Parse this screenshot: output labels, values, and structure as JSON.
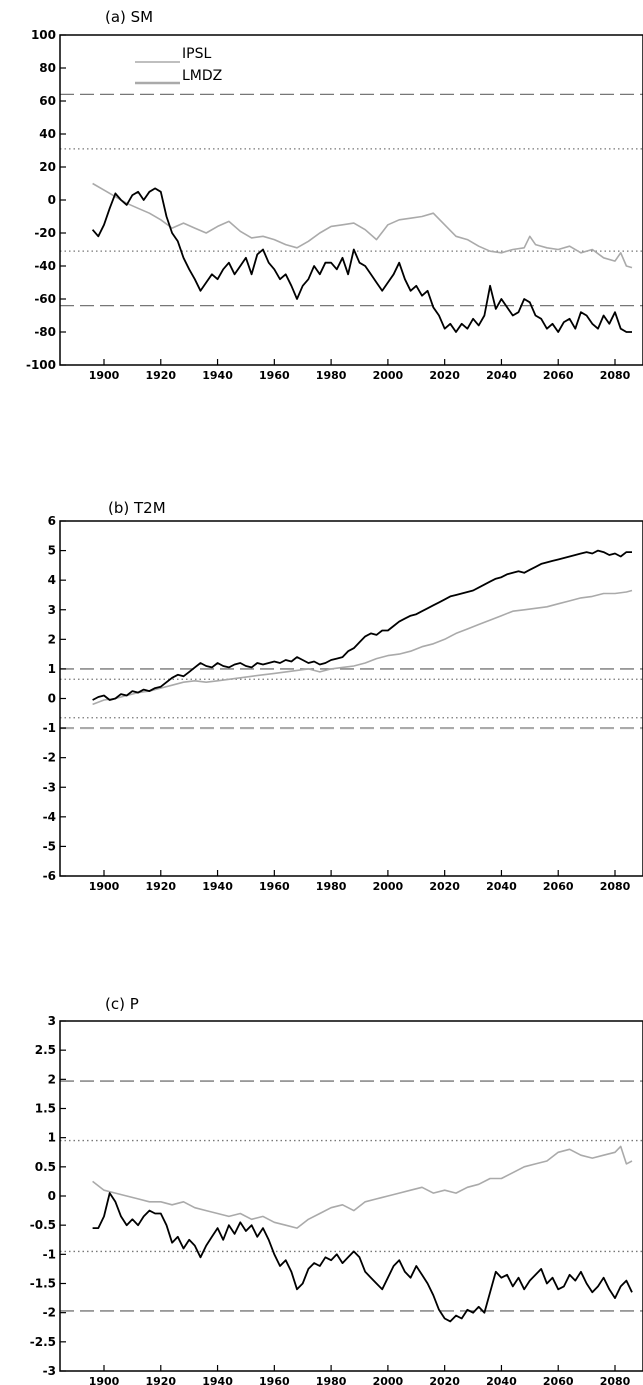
{
  "chart_data": [
    {
      "type": "line",
      "title": "(a)  SM",
      "xlim": [
        1890,
        2090
      ],
      "ylim": [
        -100,
        100
      ],
      "xticks": [
        "1900",
        "1920",
        "1940",
        "1960",
        "1980",
        "2000",
        "2020",
        "2040",
        "2060",
        "2080"
      ],
      "yticks": [
        "100",
        "80",
        "60",
        "40",
        "20",
        "0",
        "-20",
        "-40",
        "-60",
        "-80",
        "-100"
      ],
      "reference_lines": [
        {
          "y": 64,
          "style": "dashed",
          "color": "#777777"
        },
        {
          "y": 31,
          "style": "dotted",
          "color": "#777777"
        },
        {
          "y": -31,
          "style": "dotted",
          "color": "#777777"
        },
        {
          "y": -64,
          "style": "dashed",
          "color": "#777777"
        }
      ],
      "legend": {
        "position": "top-left",
        "entries": [
          "IPSL",
          "LMDZ"
        ]
      },
      "series": [
        {
          "name": "IPSL",
          "color": "#aaaaaa",
          "x": [
            1896,
            1900,
            1904,
            1908,
            1912,
            1916,
            1920,
            1924,
            1928,
            1932,
            1936,
            1940,
            1944,
            1948,
            1952,
            1956,
            1960,
            1964,
            1968,
            1972,
            1976,
            1980,
            1984,
            1988,
            1992,
            1996,
            2000,
            2004,
            2008,
            2012,
            2016,
            2020,
            2024,
            2028,
            2032,
            2036,
            2040,
            2044,
            2048,
            2050,
            2052,
            2056,
            2060,
            2064,
            2068,
            2072,
            2076,
            2080,
            2082,
            2084,
            2086
          ],
          "y": [
            10,
            6,
            2,
            -2,
            -5,
            -8,
            -12,
            -17,
            -14,
            -17,
            -20,
            -16,
            -13,
            -19,
            -23,
            -22,
            -24,
            -27,
            -29,
            -25,
            -20,
            -16,
            -15,
            -14,
            -18,
            -24,
            -15,
            -12,
            -11,
            -10,
            -8,
            -15,
            -22,
            -24,
            -28,
            -31,
            -32,
            -30,
            -29,
            -22,
            -27,
            -29,
            -30,
            -28,
            -32,
            -30,
            -35,
            -37,
            -32,
            -40,
            -41
          ]
        },
        {
          "name": "LMDZ",
          "color": "#000000",
          "x": [
            1896,
            1898,
            1900,
            1902,
            1904,
            1906,
            1908,
            1910,
            1912,
            1914,
            1916,
            1918,
            1920,
            1922,
            1924,
            1926,
            1928,
            1930,
            1932,
            1934,
            1936,
            1938,
            1940,
            1942,
            1944,
            1946,
            1948,
            1950,
            1952,
            1954,
            1956,
            1958,
            1960,
            1962,
            1964,
            1966,
            1968,
            1970,
            1972,
            1974,
            1976,
            1978,
            1980,
            1982,
            1984,
            1986,
            1988,
            1990,
            1992,
            1994,
            1996,
            1998,
            2000,
            2002,
            2004,
            2006,
            2008,
            2010,
            2012,
            2014,
            2016,
            2018,
            2020,
            2022,
            2024,
            2026,
            2028,
            2030,
            2032,
            2034,
            2036,
            2038,
            2040,
            2042,
            2044,
            2046,
            2048,
            2050,
            2052,
            2054,
            2056,
            2058,
            2060,
            2062,
            2064,
            2066,
            2068,
            2070,
            2072,
            2074,
            2076,
            2078,
            2080,
            2082,
            2084,
            2086
          ],
          "y": [
            -18,
            -22,
            -15,
            -5,
            4,
            0,
            -3,
            3,
            5,
            0,
            5,
            7,
            5,
            -10,
            -20,
            -25,
            -35,
            -42,
            -48,
            -55,
            -50,
            -45,
            -48,
            -42,
            -38,
            -45,
            -40,
            -35,
            -45,
            -33,
            -30,
            -38,
            -42,
            -48,
            -45,
            -52,
            -60,
            -52,
            -48,
            -40,
            -45,
            -38,
            -38,
            -42,
            -35,
            -45,
            -30,
            -38,
            -40,
            -45,
            -50,
            -55,
            -50,
            -45,
            -38,
            -48,
            -55,
            -52,
            -58,
            -55,
            -65,
            -70,
            -78,
            -75,
            -80,
            -75,
            -78,
            -72,
            -76,
            -70,
            -52,
            -66,
            -60,
            -65,
            -70,
            -68,
            -60,
            -62,
            -70,
            -72,
            -78,
            -75,
            -80,
            -74,
            -72,
            -78,
            -68,
            -70,
            -75,
            -78,
            -70,
            -75,
            -68,
            -78,
            -80,
            -80
          ]
        }
      ]
    },
    {
      "type": "line",
      "title": "(b)  T2M",
      "xlim": [
        1890,
        2090
      ],
      "ylim": [
        -6,
        6
      ],
      "xticks": [
        "1900",
        "1920",
        "1940",
        "1960",
        "1980",
        "2000",
        "2020",
        "2040",
        "2060",
        "2080"
      ],
      "yticks": [
        "6",
        "5",
        "4",
        "3",
        "2",
        "1",
        "0",
        "-1",
        "-2",
        "-3",
        "-4",
        "-5",
        "-6"
      ],
      "reference_lines": [
        {
          "y": 1.0,
          "style": "dashed",
          "color": "#777777"
        },
        {
          "y": 0.65,
          "style": "dotted",
          "color": "#777777"
        },
        {
          "y": -0.65,
          "style": "dotted",
          "color": "#777777"
        },
        {
          "y": -1.0,
          "style": "dashed",
          "color": "#aaaaaa"
        }
      ],
      "series": [
        {
          "name": "IPSL",
          "color": "#aaaaaa",
          "x": [
            1896,
            1900,
            1904,
            1908,
            1912,
            1916,
            1920,
            1924,
            1928,
            1932,
            1936,
            1940,
            1944,
            1948,
            1952,
            1956,
            1960,
            1964,
            1968,
            1972,
            1976,
            1980,
            1984,
            1988,
            1992,
            1996,
            2000,
            2004,
            2008,
            2012,
            2016,
            2020,
            2024,
            2028,
            2032,
            2036,
            2040,
            2044,
            2048,
            2052,
            2056,
            2060,
            2064,
            2068,
            2072,
            2076,
            2080,
            2084,
            2086
          ],
          "y": [
            -0.2,
            -0.05,
            0.0,
            0.1,
            0.2,
            0.25,
            0.35,
            0.45,
            0.55,
            0.6,
            0.55,
            0.6,
            0.65,
            0.7,
            0.75,
            0.8,
            0.85,
            0.9,
            0.95,
            1.0,
            0.9,
            1.0,
            1.05,
            1.1,
            1.2,
            1.35,
            1.45,
            1.5,
            1.6,
            1.75,
            1.85,
            2.0,
            2.2,
            2.35,
            2.5,
            2.65,
            2.8,
            2.95,
            3.0,
            3.05,
            3.1,
            3.2,
            3.3,
            3.4,
            3.45,
            3.55,
            3.55,
            3.6,
            3.65
          ]
        },
        {
          "name": "LMDZ",
          "color": "#000000",
          "x": [
            1896,
            1898,
            1900,
            1902,
            1904,
            1906,
            1908,
            1910,
            1912,
            1914,
            1916,
            1918,
            1920,
            1922,
            1924,
            1926,
            1928,
            1930,
            1932,
            1934,
            1936,
            1938,
            1940,
            1942,
            1944,
            1946,
            1948,
            1950,
            1952,
            1954,
            1956,
            1958,
            1960,
            1962,
            1964,
            1966,
            1968,
            1970,
            1972,
            1974,
            1976,
            1978,
            1980,
            1982,
            1984,
            1986,
            1988,
            1990,
            1992,
            1994,
            1996,
            1998,
            2000,
            2002,
            2004,
            2006,
            2008,
            2010,
            2012,
            2014,
            2016,
            2018,
            2020,
            2022,
            2024,
            2026,
            2028,
            2030,
            2032,
            2034,
            2036,
            2038,
            2040,
            2042,
            2044,
            2046,
            2048,
            2050,
            2052,
            2054,
            2056,
            2058,
            2060,
            2062,
            2064,
            2066,
            2068,
            2070,
            2072,
            2074,
            2076,
            2078,
            2080,
            2082,
            2084,
            2086
          ],
          "y": [
            -0.05,
            0.05,
            0.1,
            -0.05,
            0.0,
            0.15,
            0.1,
            0.25,
            0.2,
            0.3,
            0.25,
            0.35,
            0.4,
            0.55,
            0.7,
            0.8,
            0.75,
            0.9,
            1.05,
            1.2,
            1.1,
            1.05,
            1.2,
            1.1,
            1.05,
            1.15,
            1.2,
            1.1,
            1.05,
            1.2,
            1.15,
            1.2,
            1.25,
            1.2,
            1.3,
            1.25,
            1.4,
            1.3,
            1.2,
            1.25,
            1.15,
            1.2,
            1.3,
            1.35,
            1.4,
            1.6,
            1.7,
            1.9,
            2.1,
            2.2,
            2.15,
            2.3,
            2.3,
            2.45,
            2.6,
            2.7,
            2.8,
            2.85,
            2.95,
            3.05,
            3.15,
            3.25,
            3.35,
            3.45,
            3.5,
            3.55,
            3.6,
            3.65,
            3.75,
            3.85,
            3.95,
            4.05,
            4.1,
            4.2,
            4.25,
            4.3,
            4.25,
            4.35,
            4.45,
            4.55,
            4.6,
            4.65,
            4.7,
            4.75,
            4.8,
            4.85,
            4.9,
            4.95,
            4.9,
            5.0,
            4.95,
            4.85,
            4.9,
            4.8,
            4.95,
            4.95
          ]
        }
      ]
    },
    {
      "type": "line",
      "title": "(c)  P",
      "xlim": [
        1890,
        2090
      ],
      "ylim": [
        -3,
        3
      ],
      "xticks": [
        "1900",
        "1920",
        "1940",
        "1960",
        "1980",
        "2000",
        "2020",
        "2040",
        "2060",
        "2080"
      ],
      "yticks": [
        "3",
        "2.5",
        "2",
        "1.5",
        "1",
        "0.5",
        "0",
        "-0.5",
        "-1",
        "-1.5",
        "-2",
        "-2.5",
        "-3"
      ],
      "reference_lines": [
        {
          "y": 1.97,
          "style": "dashed",
          "color": "#777777"
        },
        {
          "y": 0.95,
          "style": "dotted",
          "color": "#777777"
        },
        {
          "y": -0.95,
          "style": "dotted",
          "color": "#777777"
        },
        {
          "y": -1.97,
          "style": "dashed",
          "color": "#777777"
        }
      ],
      "series": [
        {
          "name": "IPSL",
          "color": "#aaaaaa",
          "x": [
            1896,
            1900,
            1904,
            1908,
            1912,
            1916,
            1920,
            1924,
            1928,
            1932,
            1936,
            1940,
            1944,
            1948,
            1952,
            1956,
            1960,
            1964,
            1968,
            1972,
            1976,
            1980,
            1984,
            1988,
            1992,
            1996,
            2000,
            2004,
            2008,
            2012,
            2016,
            2020,
            2024,
            2028,
            2032,
            2036,
            2040,
            2044,
            2048,
            2052,
            2056,
            2060,
            2064,
            2068,
            2072,
            2076,
            2080,
            2082,
            2084,
            2086
          ],
          "y": [
            0.25,
            0.1,
            0.05,
            0.0,
            -0.05,
            -0.1,
            -0.1,
            -0.15,
            -0.1,
            -0.2,
            -0.25,
            -0.3,
            -0.35,
            -0.3,
            -0.4,
            -0.35,
            -0.45,
            -0.5,
            -0.55,
            -0.4,
            -0.3,
            -0.2,
            -0.15,
            -0.25,
            -0.1,
            -0.05,
            0.0,
            0.05,
            0.1,
            0.15,
            0.05,
            0.1,
            0.05,
            0.15,
            0.2,
            0.3,
            0.3,
            0.4,
            0.5,
            0.55,
            0.6,
            0.75,
            0.8,
            0.7,
            0.65,
            0.7,
            0.75,
            0.85,
            0.55,
            0.6
          ]
        },
        {
          "name": "LMDZ",
          "color": "#000000",
          "x": [
            1896,
            1898,
            1900,
            1902,
            1904,
            1906,
            1908,
            1910,
            1912,
            1914,
            1916,
            1918,
            1920,
            1922,
            1924,
            1926,
            1928,
            1930,
            1932,
            1934,
            1936,
            1938,
            1940,
            1942,
            1944,
            1946,
            1948,
            1950,
            1952,
            1954,
            1956,
            1958,
            1960,
            1962,
            1964,
            1966,
            1968,
            1970,
            1972,
            1974,
            1976,
            1978,
            1980,
            1982,
            1984,
            1986,
            1988,
            1990,
            1992,
            1994,
            1996,
            1998,
            2000,
            2002,
            2004,
            2006,
            2008,
            2010,
            2012,
            2014,
            2016,
            2018,
            2020,
            2022,
            2024,
            2026,
            2028,
            2030,
            2032,
            2034,
            2036,
            2038,
            2040,
            2042,
            2044,
            2046,
            2048,
            2050,
            2052,
            2054,
            2056,
            2058,
            2060,
            2062,
            2064,
            2066,
            2068,
            2070,
            2072,
            2074,
            2076,
            2078,
            2080,
            2082,
            2084,
            2086
          ],
          "y": [
            -0.55,
            -0.55,
            -0.35,
            0.05,
            -0.1,
            -0.35,
            -0.5,
            -0.4,
            -0.5,
            -0.35,
            -0.25,
            -0.3,
            -0.3,
            -0.5,
            -0.8,
            -0.7,
            -0.9,
            -0.75,
            -0.85,
            -1.05,
            -0.85,
            -0.7,
            -0.55,
            -0.75,
            -0.5,
            -0.65,
            -0.45,
            -0.6,
            -0.5,
            -0.7,
            -0.55,
            -0.75,
            -1.0,
            -1.2,
            -1.1,
            -1.3,
            -1.6,
            -1.5,
            -1.25,
            -1.15,
            -1.2,
            -1.05,
            -1.1,
            -1.0,
            -1.15,
            -1.05,
            -0.95,
            -1.05,
            -1.3,
            -1.4,
            -1.5,
            -1.6,
            -1.4,
            -1.2,
            -1.1,
            -1.3,
            -1.4,
            -1.2,
            -1.35,
            -1.5,
            -1.7,
            -1.95,
            -2.1,
            -2.15,
            -2.05,
            -2.1,
            -1.95,
            -2.0,
            -1.9,
            -2.0,
            -1.65,
            -1.3,
            -1.4,
            -1.35,
            -1.55,
            -1.4,
            -1.6,
            -1.45,
            -1.35,
            -1.25,
            -1.5,
            -1.4,
            -1.6,
            -1.55,
            -1.35,
            -1.45,
            -1.3,
            -1.5,
            -1.65,
            -1.55,
            -1.4,
            -1.6,
            -1.75,
            -1.55,
            -1.45,
            -1.65
          ]
        }
      ]
    }
  ]
}
